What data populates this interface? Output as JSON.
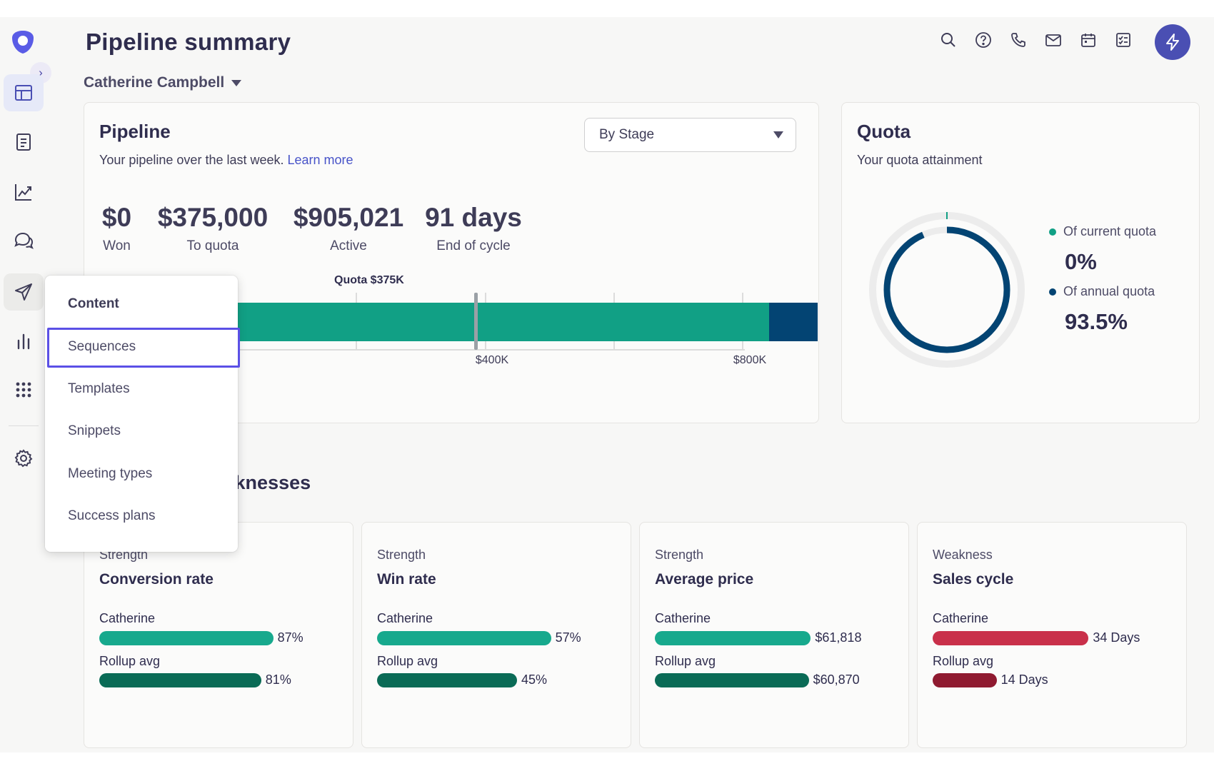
{
  "header": {
    "title": "Pipeline summary",
    "owner": "Catherine Campbell"
  },
  "header_icons": [
    "search-icon",
    "help-icon",
    "phone-icon",
    "mail-icon",
    "calendar-icon",
    "tasks-icon",
    "bolt-icon"
  ],
  "sidebar": {
    "items": [
      {
        "name": "dashboard-icon",
        "state": "active"
      },
      {
        "name": "document-icon"
      },
      {
        "name": "analytics-icon"
      },
      {
        "name": "conversations-icon"
      },
      {
        "name": "send-icon",
        "state": "hover"
      },
      {
        "name": "reports-icon"
      },
      {
        "name": "apps-icon"
      },
      {
        "name": "settings-icon"
      }
    ]
  },
  "pipeline": {
    "title": "Pipeline",
    "subtitle": "Your pipeline over the last week.",
    "learn_more": "Learn more",
    "filter": {
      "selected": "By Stage"
    },
    "metrics": [
      {
        "value": "$0",
        "label": "Won"
      },
      {
        "value": "$375,000",
        "label": "To quota"
      },
      {
        "value": "$905,021",
        "label": "Active"
      },
      {
        "value": "91 days",
        "label": "End of cycle"
      }
    ],
    "chart": {
      "quota_label": "Quota $375K",
      "quota_value": 375000,
      "ticks": [
        "$400K",
        "$800K"
      ],
      "tick_values": [
        400000,
        800000
      ],
      "segments": [
        {
          "name": "active-main",
          "value": 830000,
          "color": "#11a085"
        },
        {
          "name": "active-late",
          "value": 75021,
          "color": "#034473"
        }
      ]
    }
  },
  "quota": {
    "title": "Quota",
    "subtitle": "Your quota attainment",
    "current_label": "Of current quota",
    "current_value": "0%",
    "annual_label": "Of annual quota",
    "annual_value": "93.5%",
    "annual_fraction": 0.935,
    "colors": {
      "current": "#11a085",
      "annual": "#034473"
    }
  },
  "strengths": {
    "title": "Strengths & weaknesses",
    "cards": [
      {
        "kind": "Strength",
        "title": "Conversion rate",
        "you_label": "Catherine",
        "you_value": "87%",
        "you_frac": 0.87,
        "avg_label": "Rollup avg",
        "avg_value": "81%",
        "avg_frac": 0.81,
        "you_color": "#17a98d",
        "avg_color": "#0a6b56"
      },
      {
        "kind": "Strength",
        "title": "Win rate",
        "you_label": "Catherine",
        "you_value": "57%",
        "you_frac": 0.87,
        "avg_label": "Rollup avg",
        "avg_value": "45%",
        "avg_frac": 0.7,
        "you_color": "#17a98d",
        "avg_color": "#0a6b56"
      },
      {
        "kind": "Strength",
        "title": "Average price",
        "you_label": "Catherine",
        "you_value": "$61,818",
        "you_frac": 0.78,
        "avg_label": "Rollup avg",
        "avg_value": "$60,870",
        "avg_frac": 0.77,
        "you_color": "#17a98d",
        "avg_color": "#0a6b56"
      },
      {
        "kind": "Weakness",
        "title": "Sales cycle",
        "you_label": "Catherine",
        "you_value": "34 Days",
        "you_frac": 0.78,
        "avg_label": "Rollup avg",
        "avg_value": "14 Days",
        "avg_frac": 0.32,
        "you_color": "#c9304a",
        "avg_color": "#8f1a30"
      }
    ]
  },
  "menu": {
    "header": "Content",
    "items": [
      "Sequences",
      "Templates",
      "Snippets",
      "Meeting types",
      "Success plans"
    ],
    "focused": "Sequences"
  }
}
